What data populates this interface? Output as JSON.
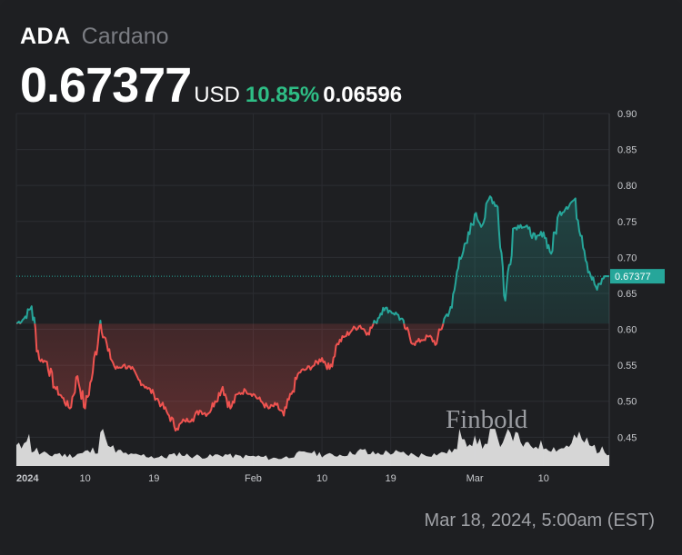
{
  "header": {
    "symbol": "ADA",
    "name": "Cardano",
    "price": "0.67377",
    "currency": "USD",
    "change_percent": "10.85%",
    "change_value": "0.06596"
  },
  "timestamp": "Mar 18, 2024, 5:00am (EST)",
  "watermark": "Finbold",
  "colors": {
    "background": "#1e1f22",
    "up": "#26a69a",
    "down": "#ef5350",
    "volume": "#e6e6e6",
    "change_text": "#2ebd85"
  },
  "chart_data": {
    "type": "line",
    "title": "",
    "xlabel": "",
    "ylabel": "",
    "baseline": 0.6078,
    "last_price": 0.67377,
    "last_price_label": "0.67377",
    "ylim": [
      0.41,
      0.9
    ],
    "y_ticks": [
      0.45,
      0.5,
      0.55,
      0.6,
      0.65,
      0.7,
      0.75,
      0.8,
      0.85,
      0.9
    ],
    "y_tick_labels": [
      "0.45",
      "0.50",
      "0.55",
      "0.60",
      "0.65",
      "0.70",
      "0.75",
      "0.80",
      "0.85",
      "0.90"
    ],
    "x_ticks": [
      {
        "label": "2024",
        "date": "2024-01-01",
        "bold": true
      },
      {
        "label": "10",
        "date": "2024-01-10"
      },
      {
        "label": "19",
        "date": "2024-01-19"
      },
      {
        "label": "Feb",
        "date": "2024-02-01"
      },
      {
        "label": "10",
        "date": "2024-02-10"
      },
      {
        "label": "19",
        "date": "2024-02-19"
      },
      {
        "label": "Mar",
        "date": "2024-03-01"
      },
      {
        "label": "10",
        "date": "2024-03-10"
      }
    ],
    "grid": true,
    "series": [
      {
        "x": [
          "2024-01-01",
          "2024-01-02",
          "2024-01-03",
          "2024-01-04",
          "2024-01-05",
          "2024-01-06",
          "2024-01-07",
          "2024-01-08",
          "2024-01-09",
          "2024-01-10",
          "2024-01-11",
          "2024-01-12",
          "2024-01-13",
          "2024-01-14",
          "2024-01-15",
          "2024-01-16",
          "2024-01-17",
          "2024-01-18",
          "2024-01-19",
          "2024-01-20",
          "2024-01-21",
          "2024-01-22",
          "2024-01-23",
          "2024-01-24",
          "2024-01-25",
          "2024-01-26",
          "2024-01-27",
          "2024-01-28",
          "2024-01-29",
          "2024-01-30",
          "2024-01-31",
          "2024-02-01",
          "2024-02-02",
          "2024-02-03",
          "2024-02-04",
          "2024-02-05",
          "2024-02-06",
          "2024-02-07",
          "2024-02-08",
          "2024-02-09",
          "2024-02-10",
          "2024-02-11",
          "2024-02-12",
          "2024-02-13",
          "2024-02-14",
          "2024-02-15",
          "2024-02-16",
          "2024-02-17",
          "2024-02-18",
          "2024-02-19",
          "2024-02-20",
          "2024-02-21",
          "2024-02-22",
          "2024-02-23",
          "2024-02-24",
          "2024-02-25",
          "2024-02-26",
          "2024-02-27",
          "2024-02-28",
          "2024-02-29",
          "2024-03-01",
          "2024-03-02",
          "2024-03-03",
          "2024-03-04",
          "2024-03-05",
          "2024-03-06",
          "2024-03-07",
          "2024-03-08",
          "2024-03-09",
          "2024-03-10",
          "2024-03-11",
          "2024-03-12",
          "2024-03-13",
          "2024-03-14",
          "2024-03-15",
          "2024-03-16",
          "2024-03-17",
          "2024-03-18"
        ],
        "values": [
          0.608,
          0.615,
          0.632,
          0.558,
          0.555,
          0.52,
          0.505,
          0.49,
          0.535,
          0.49,
          0.54,
          0.612,
          0.57,
          0.545,
          0.55,
          0.545,
          0.53,
          0.52,
          0.51,
          0.495,
          0.48,
          0.462,
          0.473,
          0.475,
          0.487,
          0.482,
          0.5,
          0.52,
          0.49,
          0.51,
          0.515,
          0.51,
          0.5,
          0.49,
          0.495,
          0.48,
          0.51,
          0.54,
          0.545,
          0.55,
          0.56,
          0.545,
          0.58,
          0.59,
          0.6,
          0.605,
          0.595,
          0.61,
          0.63,
          0.625,
          0.62,
          0.6,
          0.58,
          0.585,
          0.59,
          0.58,
          0.615,
          0.63,
          0.7,
          0.72,
          0.76,
          0.745,
          0.785,
          0.77,
          0.64,
          0.74,
          0.745,
          0.74,
          0.725,
          0.735,
          0.705,
          0.76,
          0.77,
          0.78,
          0.73,
          0.68,
          0.655,
          0.674
        ]
      }
    ],
    "volume": [
      0.55,
      0.8,
      0.45,
      0.35,
      0.3,
      0.35,
      0.3,
      0.3,
      0.35,
      0.4,
      0.45,
      1.0,
      0.5,
      0.4,
      0.35,
      0.3,
      0.3,
      0.28,
      0.25,
      0.25,
      0.3,
      0.35,
      0.3,
      0.28,
      0.27,
      0.27,
      0.3,
      0.32,
      0.28,
      0.27,
      0.27,
      0.27,
      0.25,
      0.22,
      0.22,
      0.25,
      0.3,
      0.35,
      0.4,
      0.35,
      0.32,
      0.3,
      0.32,
      0.35,
      0.4,
      0.42,
      0.35,
      0.35,
      0.38,
      0.38,
      0.35,
      0.33,
      0.3,
      0.32,
      0.33,
      0.35,
      0.4,
      0.45,
      0.9,
      0.7,
      0.7,
      0.6,
      0.95,
      0.7,
      1.1,
      0.8,
      0.6,
      0.55,
      0.6,
      0.55,
      0.5,
      0.5,
      0.6,
      0.8,
      0.7,
      0.55,
      0.45,
      0.4
    ]
  }
}
